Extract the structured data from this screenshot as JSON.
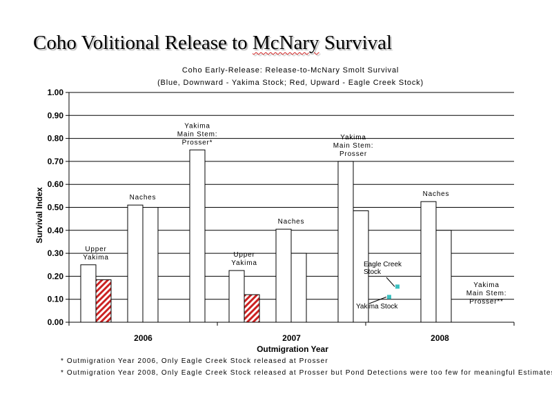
{
  "slide": {
    "title_before": "Coho Volitional Release to ",
    "title_underlined": "McNary",
    "title_after": " Survival"
  },
  "footnotes": [
    "* Outmigration Year 2006, Only Eagle Creek Stock released at Prosser",
    "* Outmigration Year 2008, Only Eagle Creek Stock released at Prosser but Pond Detections were too few for meaningful Estimates"
  ],
  "chart_data": {
    "type": "bar",
    "title": "Coho Early-Release: Release-to-McNary Smolt Survival",
    "subtitle": "(Blue, Downward - Yakima Stock; Red, Upward - Eagle Creek Stock)",
    "xlabel": "Outmigration Year",
    "ylabel": "Survival Index",
    "ylim": [
      0,
      1.0
    ],
    "yticks": [
      "0.00",
      "0.10",
      "0.20",
      "0.30",
      "0.40",
      "0.50",
      "0.60",
      "0.70",
      "0.80",
      "0.90",
      "1.00"
    ],
    "grid": true,
    "categories": [
      "2006",
      "2007",
      "2008"
    ],
    "hatch_color": "#cc2222",
    "marker_color": "#3cc0c0",
    "groups": [
      {
        "year": "2006",
        "release_sites": [
          {
            "label": [
              "Upper",
              "Yakima"
            ],
            "bars": [
              {
                "value": 0.25,
                "style": "plain"
              },
              {
                "value": 0.185,
                "style": "hatched"
              }
            ]
          },
          {
            "label": [
              "Naches"
            ],
            "bars": [
              {
                "value": 0.51,
                "style": "plain"
              },
              {
                "value": 0.5,
                "style": "plain"
              }
            ]
          },
          {
            "label": [
              "Yakima",
              "Main Stem:",
              "Prosser*"
            ],
            "bars": [
              {
                "value": 0.75,
                "style": "plain"
              }
            ]
          }
        ]
      },
      {
        "year": "2007",
        "release_sites": [
          {
            "label": [
              "Upper",
              "Yakima"
            ],
            "bars": [
              {
                "value": 0.225,
                "style": "plain"
              },
              {
                "value": 0.12,
                "style": "hatched"
              }
            ]
          },
          {
            "label": [
              "Naches"
            ],
            "bars": [
              {
                "value": 0.405,
                "style": "plain"
              },
              {
                "value": 0.3,
                "style": "plain"
              }
            ]
          },
          {
            "label": [
              "Yakima",
              "Main Stem:",
              "Prosser"
            ],
            "bars": [
              {
                "value": 0.7,
                "style": "plain"
              },
              {
                "value": 0.485,
                "style": "plain"
              }
            ]
          }
        ]
      },
      {
        "year": "2008",
        "release_sites": [
          {
            "label": [
              "Naches"
            ],
            "bars": [
              {
                "value": 0.525,
                "style": "plain"
              },
              {
                "value": 0.4,
                "style": "plain"
              }
            ]
          },
          {
            "label": [
              "Yakima",
              "Main Stem:",
              "Prosser**"
            ],
            "bars": []
          }
        ]
      }
    ],
    "annotations": [
      {
        "text": [
          "Eagle Creek",
          "Stock"
        ],
        "marker_value": 0.155
      },
      {
        "text": [
          "Yakima Stock"
        ],
        "marker_value": 0.11
      }
    ]
  }
}
